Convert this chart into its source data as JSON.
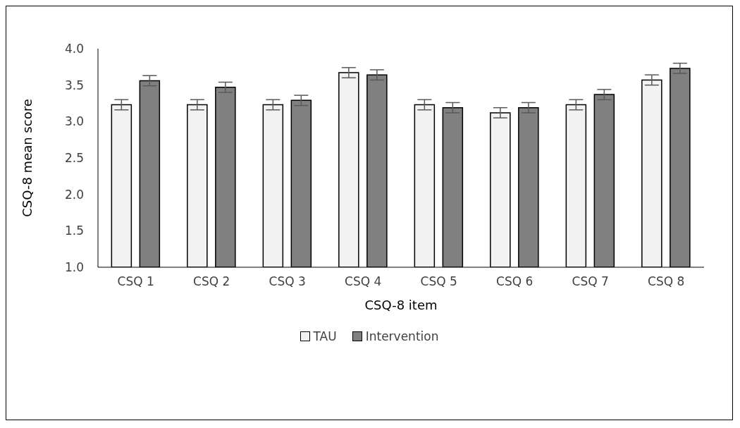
{
  "chart_data": {
    "type": "bar",
    "xlabel": "CSQ-8 item",
    "ylabel": "CSQ-8 mean score",
    "categories": [
      "CSQ 1",
      "CSQ 2",
      "CSQ 3",
      "CSQ 4",
      "CSQ 5",
      "CSQ 6",
      "CSQ 7",
      "CSQ 8"
    ],
    "series": [
      {
        "name": "TAU",
        "color": "#f2f2f2",
        "values": [
          3.23,
          3.23,
          3.23,
          3.67,
          3.23,
          3.12,
          3.23,
          3.57
        ],
        "errors": [
          0.07,
          0.07,
          0.07,
          0.07,
          0.07,
          0.07,
          0.07,
          0.07
        ]
      },
      {
        "name": "Intervention",
        "color": "#808080",
        "values": [
          3.56,
          3.47,
          3.29,
          3.64,
          3.19,
          3.19,
          3.37,
          3.73
        ],
        "errors": [
          0.07,
          0.07,
          0.07,
          0.07,
          0.07,
          0.07,
          0.07,
          0.07
        ]
      }
    ],
    "ylim": [
      1.0,
      4.0
    ],
    "yticks": [
      {
        "value": 1,
        "label": "1.0"
      },
      {
        "value": 1.5,
        "label": "1.5"
      },
      {
        "value": 2,
        "label": "2.0"
      },
      {
        "value": 2.5,
        "label": "2.5"
      },
      {
        "value": 3,
        "label": "3.0"
      },
      {
        "value": 3.5,
        "label": "3.5"
      },
      {
        "value": 4,
        "label": "4.0"
      }
    ],
    "grid": false,
    "legend": "bottom"
  }
}
